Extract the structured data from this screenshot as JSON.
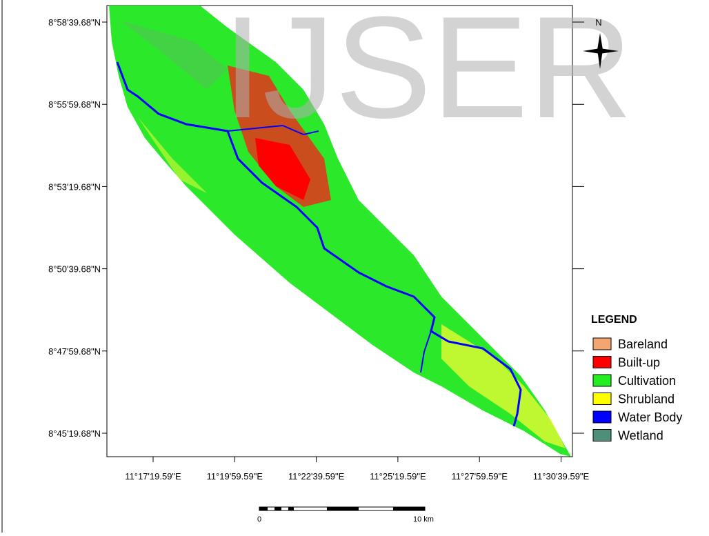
{
  "watermark": "IJSER",
  "lat_labels": [
    "8°58'39.68\"N",
    "8°55'59.68\"N",
    "8°53'19.68\"N",
    "8°50'39.68\"N",
    "8°47'59.68\"N",
    "8°45'19.68\"N"
  ],
  "lon_labels": [
    "11°17'19.59\"E",
    "11°19'59.59\"E",
    "11°22'39.59\"E",
    "11°25'19.59\"E",
    "11°27'59.59\"E",
    "11°30'39.59\"E"
  ],
  "north": "N",
  "legend": {
    "title": "LEGEND",
    "items": [
      {
        "label": "Bareland",
        "color": "#f4a672"
      },
      {
        "label": "Built-up",
        "color": "#ff0000"
      },
      {
        "label": "Cultivation",
        "color": "#22ee22"
      },
      {
        "label": "Shrubland",
        "color": "#ffff00"
      },
      {
        "label": "Water Body",
        "color": "#0000ff"
      },
      {
        "label": "Wetland",
        "color": "#4e8f7a"
      }
    ]
  },
  "scale_bar": {
    "start": "0",
    "end": "10 km"
  }
}
